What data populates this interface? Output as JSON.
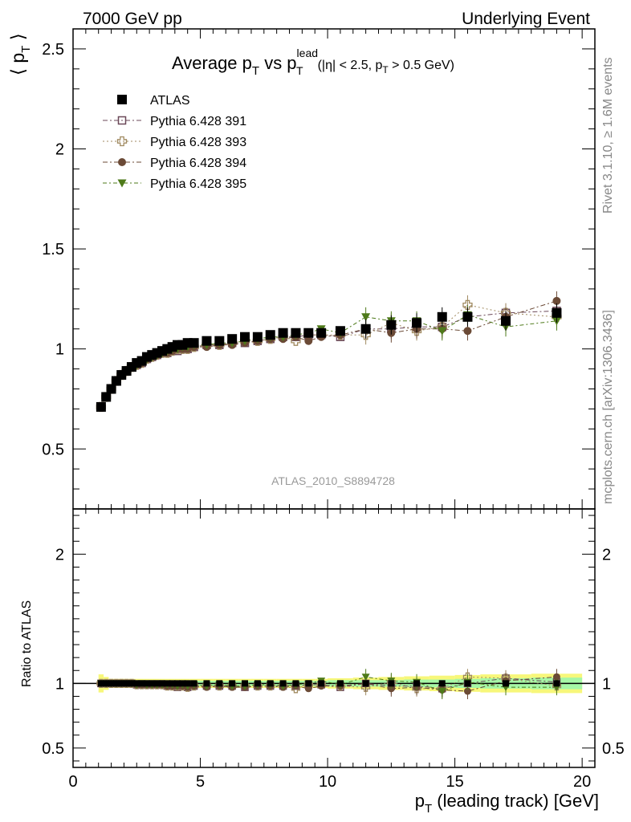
{
  "header": {
    "left": "7000 GeV pp",
    "right": "Underlying Event"
  },
  "title": {
    "main": "Average p",
    "main_sub": "T",
    "vs": " vs p",
    "vs_sup": "lead",
    "vs_sub": "T",
    "cuts_a": "(|η| < 2.5, p",
    "cuts_sub": "T",
    "cuts_b": " > 0.5 GeV)"
  },
  "side_labels": {
    "rivet": "Rivet 3.1.10, ≥ 1.6M events",
    "mcplots": "mcplots.cern.ch [arXiv:1306.3436]"
  },
  "analysis_id": "ATLAS_2010_S8894728",
  "axes": {
    "ylabel_top_a": "⟨ p",
    "ylabel_top_sub": "T",
    "ylabel_top_b": " ⟩",
    "ylabel_bottom": "Ratio to ATLAS",
    "xlabel_a": "p",
    "xlabel_sub": "T",
    "xlabel_b": " (leading track) [GeV]"
  },
  "colors": {
    "atlas": "#000000",
    "p391": "#6b4858",
    "p393": "#a08a60",
    "p394": "#6b4a36",
    "p395": "#4e7a1a",
    "band_inner": "#a6f7a6",
    "band_outer": "#f7f77a"
  },
  "chart_data": [
    {
      "type": "scatter",
      "panel": "main",
      "xlim": [
        0,
        20.5
      ],
      "ylim": [
        0.2,
        2.6
      ],
      "x_ticks": [
        0,
        5,
        10,
        15,
        20
      ],
      "y_ticks": [
        0.5,
        1,
        1.5,
        2,
        2.5
      ],
      "y_tick_labels": [
        "0.5",
        "1",
        "1.5",
        "2",
        "2.5"
      ],
      "x": [
        1.1,
        1.3,
        1.5,
        1.7,
        1.9,
        2.1,
        2.3,
        2.5,
        2.7,
        2.9,
        3.1,
        3.3,
        3.5,
        3.7,
        3.9,
        4.1,
        4.3,
        4.5,
        4.75,
        5.25,
        5.75,
        6.25,
        6.75,
        7.25,
        7.75,
        8.25,
        8.75,
        9.25,
        9.75,
        10.5,
        11.5,
        12.5,
        13.5,
        14.5,
        15.5,
        17.0,
        19.0
      ],
      "series": [
        {
          "name": "ATLAS",
          "marker": "filled-square",
          "values": [
            0.71,
            0.76,
            0.8,
            0.84,
            0.87,
            0.89,
            0.91,
            0.93,
            0.94,
            0.96,
            0.97,
            0.98,
            0.99,
            1.0,
            1.01,
            1.02,
            1.02,
            1.03,
            1.03,
            1.04,
            1.04,
            1.05,
            1.06,
            1.06,
            1.07,
            1.08,
            1.08,
            1.08,
            1.08,
            1.09,
            1.1,
            1.12,
            1.13,
            1.16,
            1.16,
            1.14,
            1.18
          ]
        },
        {
          "name": "Pythia 6.428 391",
          "marker": "open-square",
          "values": [
            0.71,
            0.76,
            0.8,
            0.84,
            0.87,
            0.89,
            0.91,
            0.92,
            0.93,
            0.95,
            0.96,
            0.97,
            0.98,
            0.98,
            0.99,
            0.99,
            1.0,
            1.0,
            1.01,
            1.02,
            1.02,
            1.03,
            1.03,
            1.04,
            1.05,
            1.06,
            1.06,
            1.07,
            1.07,
            1.06,
            1.1,
            1.1,
            1.11,
            1.11,
            1.16,
            1.18,
            1.19
          ]
        },
        {
          "name": "Pythia 6.428 393",
          "marker": "open-cross",
          "values": [
            0.71,
            0.76,
            0.8,
            0.84,
            0.87,
            0.89,
            0.91,
            0.92,
            0.93,
            0.95,
            0.96,
            0.97,
            0.98,
            0.98,
            0.99,
            1.0,
            1.0,
            1.0,
            1.01,
            1.02,
            1.02,
            1.03,
            1.04,
            1.04,
            1.05,
            1.06,
            1.04,
            1.07,
            1.07,
            1.07,
            1.07,
            1.13,
            1.09,
            1.11,
            1.22,
            1.18,
            1.16
          ]
        },
        {
          "name": "Pythia 6.428 394",
          "marker": "filled-circle",
          "values": [
            0.71,
            0.76,
            0.8,
            0.84,
            0.87,
            0.89,
            0.91,
            0.92,
            0.93,
            0.95,
            0.96,
            0.97,
            0.98,
            0.98,
            0.99,
            1.0,
            1.0,
            1.0,
            1.01,
            1.01,
            1.02,
            1.02,
            1.03,
            1.04,
            1.05,
            1.05,
            1.06,
            1.04,
            1.06,
            1.07,
            1.1,
            1.08,
            1.1,
            1.1,
            1.09,
            1.16,
            1.24
          ]
        },
        {
          "name": "Pythia 6.428 395",
          "marker": "filled-triangle-down",
          "values": [
            0.71,
            0.76,
            0.8,
            0.84,
            0.87,
            0.89,
            0.91,
            0.92,
            0.94,
            0.95,
            0.96,
            0.97,
            0.98,
            0.99,
            1.0,
            1.0,
            1.01,
            1.01,
            1.02,
            1.02,
            1.03,
            1.03,
            1.04,
            1.05,
            1.06,
            1.06,
            1.07,
            1.08,
            1.1,
            1.08,
            1.16,
            1.14,
            1.14,
            1.09,
            1.17,
            1.11,
            1.14
          ]
        }
      ],
      "legend_position": "top-left"
    },
    {
      "type": "scatter",
      "panel": "ratio",
      "xlim": [
        0,
        20.5
      ],
      "ylim": [
        0.35,
        2.35
      ],
      "x_ticks": [
        0,
        5,
        10,
        15,
        20
      ],
      "x_tick_labels": [
        "0",
        "5",
        "10",
        "15",
        "20"
      ],
      "y_ticks": [
        0.5,
        1,
        2
      ],
      "y_tick_labels": [
        "0.5",
        "1",
        "2"
      ],
      "reference_line": 1,
      "band_edges": [
        1.0,
        1.2,
        1.4,
        1.6,
        1.8,
        2.0,
        2.2,
        2.4,
        2.6,
        2.8,
        3.0,
        3.2,
        3.4,
        3.6,
        3.8,
        4.0,
        4.2,
        4.4,
        4.6,
        5.0,
        5.5,
        6.0,
        6.5,
        7.0,
        7.5,
        8.0,
        8.5,
        9.0,
        9.5,
        10.0,
        11.0,
        12.0,
        13.0,
        14.0,
        15.0,
        16.0,
        18.0,
        20.0
      ],
      "band_inner": [
        0.03,
        0.025,
        0.02,
        0.02,
        0.02,
        0.02,
        0.02,
        0.02,
        0.02,
        0.02,
        0.02,
        0.02,
        0.02,
        0.02,
        0.02,
        0.02,
        0.02,
        0.02,
        0.02,
        0.02,
        0.02,
        0.02,
        0.02,
        0.02,
        0.02,
        0.02,
        0.02,
        0.02,
        0.02,
        0.025,
        0.025,
        0.025,
        0.03,
        0.03,
        0.035,
        0.04,
        0.045
      ],
      "band_outer": [
        0.07,
        0.05,
        0.035,
        0.035,
        0.035,
        0.035,
        0.035,
        0.035,
        0.035,
        0.035,
        0.035,
        0.035,
        0.035,
        0.035,
        0.035,
        0.035,
        0.035,
        0.035,
        0.035,
        0.035,
        0.035,
        0.035,
        0.035,
        0.035,
        0.035,
        0.035,
        0.035,
        0.035,
        0.035,
        0.04,
        0.045,
        0.05,
        0.055,
        0.06,
        0.065,
        0.07,
        0.075
      ],
      "ratios": {
        "Pythia 6.428 391": [
          1.0,
          1.0,
          1.0,
          1.0,
          1.0,
          1.0,
          1.0,
          0.99,
          0.99,
          0.99,
          0.99,
          0.99,
          0.99,
          0.98,
          0.98,
          0.97,
          0.98,
          0.97,
          0.98,
          0.98,
          0.98,
          0.98,
          0.97,
          0.98,
          0.98,
          0.98,
          0.98,
          0.99,
          0.99,
          0.97,
          1.0,
          0.98,
          0.98,
          0.96,
          1.0,
          1.04,
          1.01
        ],
        "Pythia 6.428 393": [
          1.0,
          1.0,
          1.0,
          1.0,
          1.0,
          1.0,
          1.0,
          0.99,
          0.99,
          0.99,
          0.99,
          0.99,
          0.99,
          0.98,
          0.98,
          0.98,
          0.98,
          0.97,
          0.98,
          0.98,
          0.98,
          0.98,
          0.98,
          0.98,
          0.98,
          0.98,
          0.96,
          0.99,
          0.99,
          0.98,
          0.97,
          1.01,
          0.96,
          0.96,
          1.05,
          1.04,
          0.98
        ],
        "Pythia 6.428 394": [
          1.0,
          1.0,
          1.0,
          1.0,
          1.0,
          1.0,
          1.0,
          0.99,
          0.99,
          0.99,
          0.99,
          0.99,
          0.99,
          0.98,
          0.98,
          0.98,
          0.98,
          0.97,
          0.98,
          0.97,
          0.98,
          0.97,
          0.97,
          0.98,
          0.98,
          0.97,
          0.98,
          0.96,
          0.98,
          0.98,
          1.0,
          0.96,
          0.97,
          0.95,
          0.94,
          1.02,
          1.05
        ],
        "Pythia 6.428 395": [
          1.0,
          1.0,
          1.0,
          1.0,
          1.0,
          1.0,
          1.0,
          0.99,
          1.0,
          0.99,
          0.99,
          0.99,
          0.99,
          0.99,
          0.99,
          0.98,
          0.99,
          0.98,
          0.99,
          0.98,
          0.99,
          0.98,
          0.98,
          0.99,
          0.99,
          0.98,
          0.99,
          1.0,
          1.02,
          0.99,
          1.05,
          1.02,
          1.01,
          0.94,
          1.01,
          0.97,
          0.97
        ]
      }
    }
  ]
}
